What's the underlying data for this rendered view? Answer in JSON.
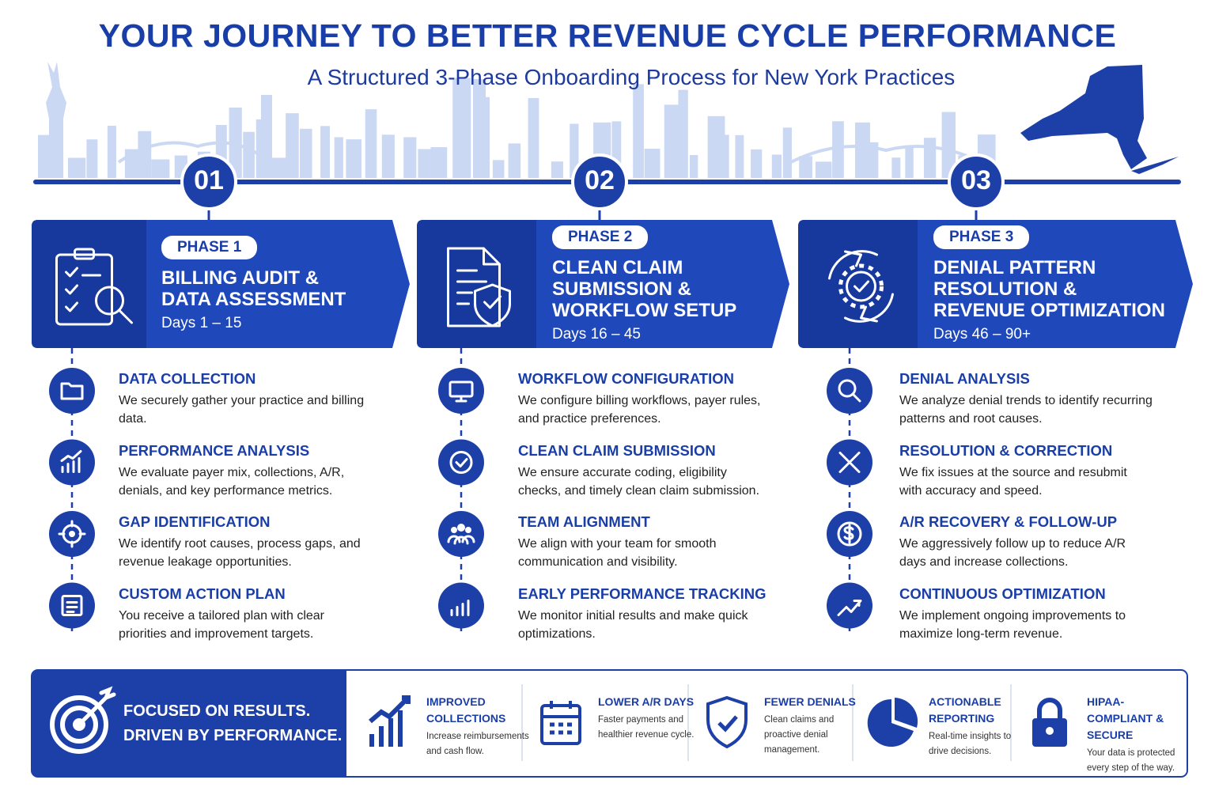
{
  "header": {
    "title": "YOUR JOURNEY TO BETTER REVENUE CYCLE PERFORMANCE",
    "subtitle": "A Structured 3-Phase Onboarding Process for New York Practices"
  },
  "phases": [
    {
      "number": "01",
      "badge": "PHASE 1",
      "title_lines": [
        "BILLING AUDIT &",
        "DATA ASSESSMENT"
      ],
      "days": "Days 1 – 15",
      "steps": [
        {
          "title": "DATA COLLECTION",
          "text": "We securely gather your practice and billing data."
        },
        {
          "title": "PERFORMANCE ANALYSIS",
          "text": "We evaluate payer mix, collections, A/R, denials, and key performance metrics."
        },
        {
          "title": "GAP IDENTIFICATION",
          "text": "We identify root causes, process gaps, and revenue leakage opportunities."
        },
        {
          "title": "CUSTOM ACTION PLAN",
          "text": "You receive a tailored plan with clear priorities and improvement targets."
        }
      ]
    },
    {
      "number": "02",
      "badge": "PHASE 2",
      "title_lines": [
        "CLEAN CLAIM",
        "SUBMISSION &",
        "WORKFLOW SETUP"
      ],
      "days": "Days 16 – 45",
      "steps": [
        {
          "title": "WORKFLOW CONFIGURATION",
          "text": "We configure billing workflows, payer rules, and practice preferences."
        },
        {
          "title": "CLEAN CLAIM SUBMISSION",
          "text": "We ensure accurate coding, eligibility checks, and timely clean claim submission."
        },
        {
          "title": "TEAM ALIGNMENT",
          "text": "We align with your team for smooth communication and visibility."
        },
        {
          "title": "EARLY PERFORMANCE TRACKING",
          "text": "We monitor initial results and make quick optimizations."
        }
      ]
    },
    {
      "number": "03",
      "badge": "PHASE 3",
      "title_lines": [
        "DENIAL PATTERN",
        "RESOLUTION &",
        "REVENUE OPTIMIZATION"
      ],
      "days": "Days 46 – 90+",
      "steps": [
        {
          "title": "DENIAL ANALYSIS",
          "text": "We analyze denial trends to identify recurring patterns and root causes."
        },
        {
          "title": "RESOLUTION & CORRECTION",
          "text": "We fix issues at the source and resubmit with accuracy and speed."
        },
        {
          "title": "A/R RECOVERY & FOLLOW-UP",
          "text": "We aggressively follow up to reduce A/R days and increase collections."
        },
        {
          "title": "CONTINUOUS OPTIMIZATION",
          "text": "We implement ongoing improvements to maximize long-term revenue."
        }
      ]
    }
  ],
  "footer": {
    "tagline_lines": [
      "FOCUSED ON RESULTS.",
      "DRIVEN BY PERFORMANCE."
    ],
    "benefits": [
      {
        "title": "IMPROVED COLLECTIONS",
        "text": "Increase reimbursements and cash flow."
      },
      {
        "title": "LOWER A/R DAYS",
        "text": "Faster payments and healthier revenue cycle."
      },
      {
        "title": "FEWER DENIALS",
        "text": "Clean claims and proactive denial management."
      },
      {
        "title": "ACTIONABLE REPORTING",
        "text": "Real-time insights to drive decisions."
      },
      {
        "title": "HIPAA-COMPLIANT & SECURE",
        "text": "Your data is protected every step of the way."
      }
    ]
  }
}
